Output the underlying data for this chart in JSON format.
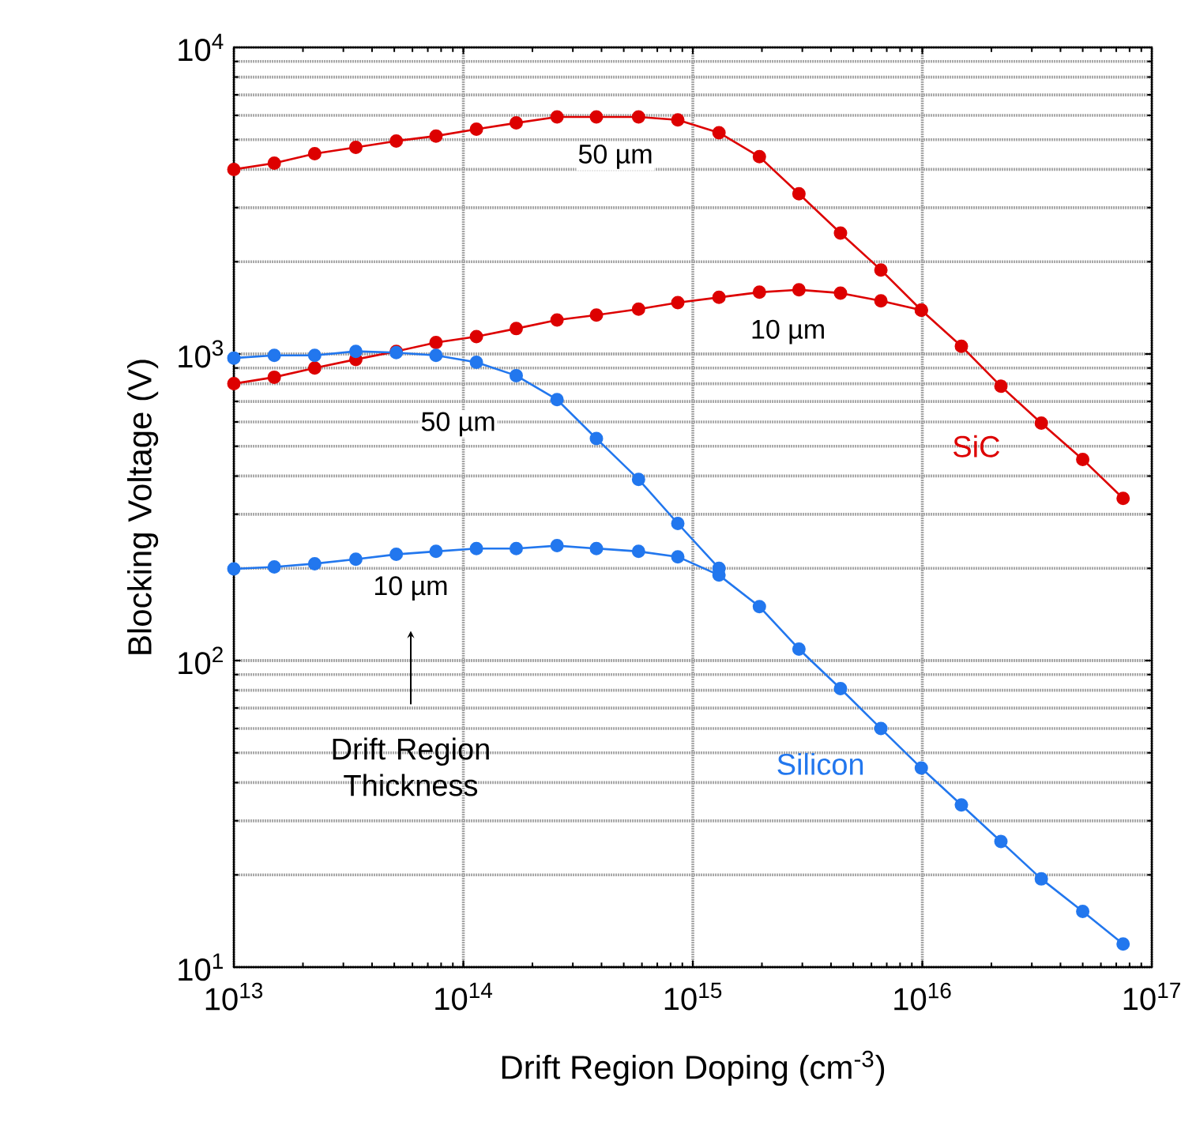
{
  "chart_data": {
    "type": "line",
    "xlabel": "Drift Region Doping (cm$^{-3}$)",
    "ylabel": "Blocking Voltage (V)",
    "log": "xy",
    "grid": true,
    "marker": "circle",
    "line_style": "solid",
    "legend": false,
    "xlim": [
      10000000000000.0,
      1e+17
    ],
    "ylim": [
      10,
      10000
    ],
    "xticks": [
      {
        "value": 10000000000000.0,
        "label": "10$^{13}$"
      },
      {
        "value": 100000000000000.0,
        "label": "10$^{14}$"
      },
      {
        "value": 1000000000000000.0,
        "label": "10$^{15}$"
      },
      {
        "value": 1e+16,
        "label": "10$^{16}$"
      },
      {
        "value": 1e+17,
        "label": "10$^{17}$"
      }
    ],
    "yticks": [
      {
        "value": 10,
        "label": "10$^{1}$"
      },
      {
        "value": 100,
        "label": "10$^{2}$"
      },
      {
        "value": 1000,
        "label": "10$^{3}$"
      },
      {
        "value": 10000,
        "label": "10$^{4}$"
      }
    ],
    "series": [
      {
        "name": "50 µm",
        "color": "#dd0000",
        "x": [
          10000000000000.0,
          15000000000000.0,
          22500000000000.0,
          34000000000000.0,
          51000000000000.0,
          76000000000000.0,
          114000000000000.0,
          170000000000000.0,
          256000000000000.0,
          380000000000000.0,
          580000000000000.0,
          860000000000000.0,
          1300000000000000.0,
          1950000000000000.0,
          2900000000000000.0,
          4400000000000000.0,
          6600000000000000.0,
          9900000000000000.0,
          1.48e+16,
          2.2e+16,
          3.3e+16,
          5e+16,
          7.5e+16
        ],
        "values": [
          4000,
          4190,
          4500,
          4720,
          4950,
          5140,
          5410,
          5670,
          5930,
          5930,
          5930,
          5800,
          5270,
          4400,
          3330,
          2480,
          1880,
          1390,
          1060,
          785,
          595,
          453,
          338
        ]
      },
      {
        "name": "10 µm",
        "color": "#dd0000",
        "x": [
          10000000000000.0,
          15000000000000.0,
          22500000000000.0,
          34000000000000.0,
          51000000000000.0,
          76000000000000.0,
          114000000000000.0,
          170000000000000.0,
          256000000000000.0,
          380000000000000.0,
          580000000000000.0,
          860000000000000.0,
          1300000000000000.0,
          1950000000000000.0,
          2900000000000000.0,
          4400000000000000.0,
          6600000000000000.0,
          9900000000000000.0
        ],
        "values": [
          800,
          840,
          900,
          960,
          1020,
          1090,
          1140,
          1210,
          1290,
          1340,
          1400,
          1470,
          1530,
          1590,
          1620,
          1580,
          1490,
          1390
        ]
      },
      {
        "name": "50 µm",
        "color": "#2277ee",
        "x": [
          10000000000000.0,
          15000000000000.0,
          22500000000000.0,
          34000000000000.0,
          51000000000000.0,
          76000000000000.0,
          114000000000000.0,
          170000000000000.0,
          256000000000000.0,
          380000000000000.0,
          580000000000000.0,
          860000000000000.0,
          1300000000000000.0
        ],
        "values": [
          970,
          990,
          990,
          1020,
          1010,
          990,
          940,
          850,
          710,
          530,
          390,
          280,
          200
        ]
      },
      {
        "name": "10 µm",
        "color": "#2277ee",
        "x": [
          10000000000000.0,
          15000000000000.0,
          22500000000000.0,
          34000000000000.0,
          51000000000000.0,
          76000000000000.0,
          114000000000000.0,
          170000000000000.0,
          256000000000000.0,
          380000000000000.0,
          580000000000000.0,
          860000000000000.0,
          1300000000000000.0,
          1950000000000000.0,
          2900000000000000.0,
          4400000000000000.0,
          6600000000000000.0,
          9900000000000000.0,
          1.48e+16,
          2.2e+16,
          3.3e+16,
          5e+16,
          7.5e+16
        ],
        "values": [
          199,
          202,
          207,
          214,
          222,
          227,
          232,
          232,
          237,
          232,
          227,
          218,
          190,
          150,
          109,
          81,
          60,
          44.6,
          33.8,
          25.7,
          19.4,
          15.2,
          11.9
        ]
      }
    ],
    "annotations": [
      "SiC",
      "Silicon",
      "Drift Region Thickness"
    ]
  }
}
